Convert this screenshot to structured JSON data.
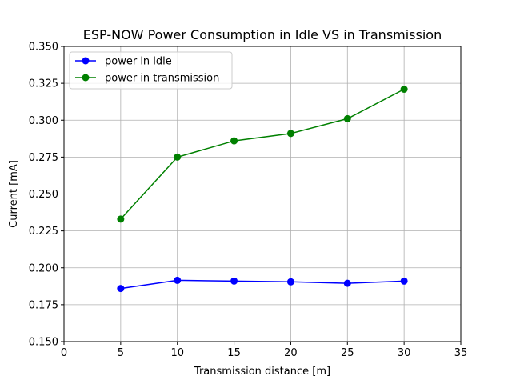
{
  "chart_data": {
    "type": "line",
    "title": "ESP-NOW Power Consumption in Idle VS in Transmission",
    "xlabel": "Transmission distance [m]",
    "ylabel": "Current [mA]",
    "xlim": [
      0,
      35
    ],
    "ylim": [
      0.15,
      0.35
    ],
    "xticks": [
      0,
      5,
      10,
      15,
      20,
      25,
      30,
      35
    ],
    "xtick_labels": [
      "0",
      "5",
      "10",
      "15",
      "20",
      "25",
      "30",
      "35"
    ],
    "yticks": [
      0.15,
      0.175,
      0.2,
      0.225,
      0.25,
      0.275,
      0.3,
      0.325,
      0.35
    ],
    "ytick_labels": [
      "0.150",
      "0.175",
      "0.200",
      "0.225",
      "0.250",
      "0.275",
      "0.300",
      "0.325",
      "0.350"
    ],
    "grid": true,
    "legend_position": "top-left",
    "x": [
      5,
      10,
      15,
      20,
      25,
      30
    ],
    "series": [
      {
        "name": "power in idle",
        "color": "#0000ff",
        "marker": "circle",
        "values": [
          0.186,
          0.1915,
          0.191,
          0.1905,
          0.1895,
          0.191
        ]
      },
      {
        "name": "power in transmission",
        "color": "#008000",
        "marker": "circle",
        "values": [
          0.233,
          0.275,
          0.286,
          0.291,
          0.301,
          0.321
        ]
      }
    ]
  }
}
